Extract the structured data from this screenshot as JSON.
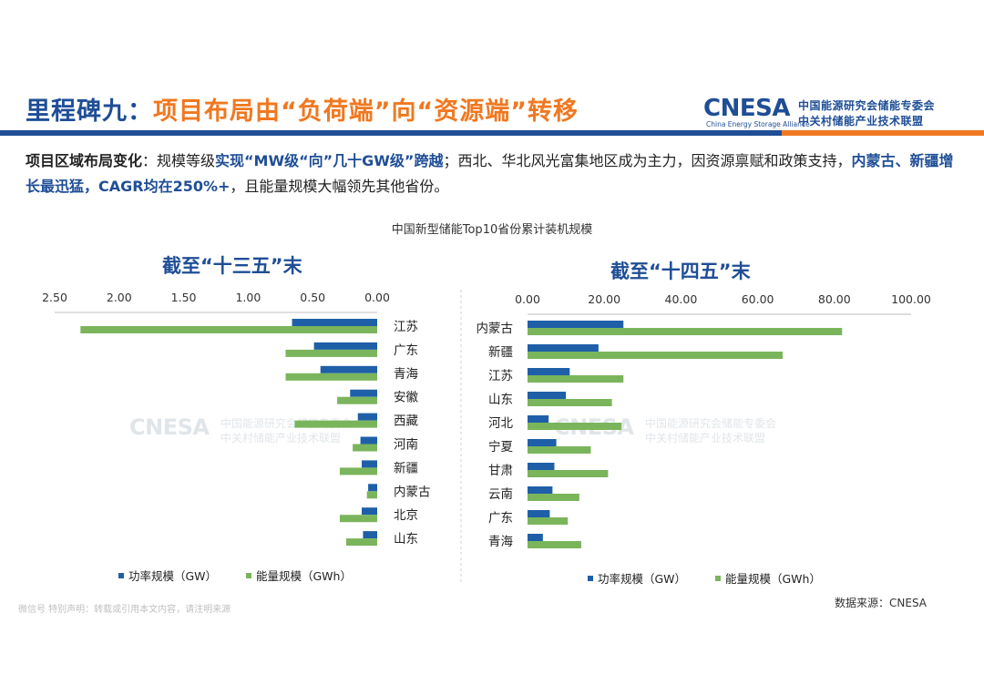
{
  "header": {
    "title_prefix": "里程碑九：",
    "title_main": "项目布局由“负荷端”向“资源端”转移"
  },
  "logo": {
    "brand": "CNESA",
    "brand_sub": "China Energy Storage Alliance",
    "cn_line1": "中国能源研究会储能专委会",
    "cn_line2": "中关村储能产业技术联盟"
  },
  "description": {
    "label": "项目区域布局变化",
    "sep": "：规模等级",
    "hl1": "实现“MW级“向”几十GW级”跨越",
    "text2": "；西北、华北风光富集地区成为主力，因资源禀赋和政策支持，",
    "hl2": "内蒙古、新疆增长最迅猛，CAGR均在250%+",
    "text3": "，且能量规模大幅领先其他省份。"
  },
  "chart_main_title": "中国新型储能Top10省份累计装机规模",
  "watermark": {
    "brand": "CNESA",
    "cn_line1": "中国能源研究会储能专委会",
    "cn_line2": "中关村储能产业技术联盟"
  },
  "note": "微信号 特别声明：转载或引用本文内容，请注明来源",
  "source": "数据来源：CNESA",
  "colors": {
    "power": "#1f5fa8",
    "energy": "#7ab55c",
    "title": "#f07820",
    "brand": "#1f4e96"
  },
  "chart_data": [
    {
      "type": "bar",
      "orientation": "horizontal",
      "title": "截至“十三五”末",
      "x_direction": "reversed",
      "xlim": [
        0,
        2.5
      ],
      "ticks": [
        "0.00",
        "0.50",
        "1.00",
        "1.50",
        "2.00",
        "2.50"
      ],
      "categories": [
        "江苏",
        "广东",
        "青海",
        "安徽",
        "西藏",
        "河南",
        "新疆",
        "内蒙古",
        "北京",
        "山东"
      ],
      "series": [
        {
          "name": "功率规模（GW）",
          "values": [
            0.66,
            0.49,
            0.44,
            0.21,
            0.15,
            0.13,
            0.12,
            0.07,
            0.12,
            0.11
          ]
        },
        {
          "name": "能量规模（GWh）",
          "values": [
            2.3,
            0.71,
            0.71,
            0.31,
            0.64,
            0.19,
            0.29,
            0.08,
            0.29,
            0.24
          ]
        }
      ],
      "legend": "bottom"
    },
    {
      "type": "bar",
      "orientation": "horizontal",
      "title": "截至“十四五”末",
      "xlim": [
        0,
        100
      ],
      "ticks": [
        "0.00",
        "20.00",
        "40.00",
        "60.00",
        "80.00",
        "100.00"
      ],
      "categories": [
        "内蒙古",
        "新疆",
        "江苏",
        "山东",
        "河北",
        "宁夏",
        "甘肃",
        "云南",
        "广东",
        "青海"
      ],
      "series": [
        {
          "name": "功率规模（GW）",
          "values": [
            25.0,
            18.5,
            11.0,
            10.0,
            5.5,
            7.5,
            7.0,
            6.5,
            5.8,
            4.0
          ]
        },
        {
          "name": "能量规模（GWh）",
          "values": [
            82.0,
            66.5,
            25.0,
            22.0,
            24.5,
            16.5,
            21.0,
            13.5,
            10.5,
            14.0
          ]
        }
      ],
      "legend": "bottom"
    }
  ]
}
